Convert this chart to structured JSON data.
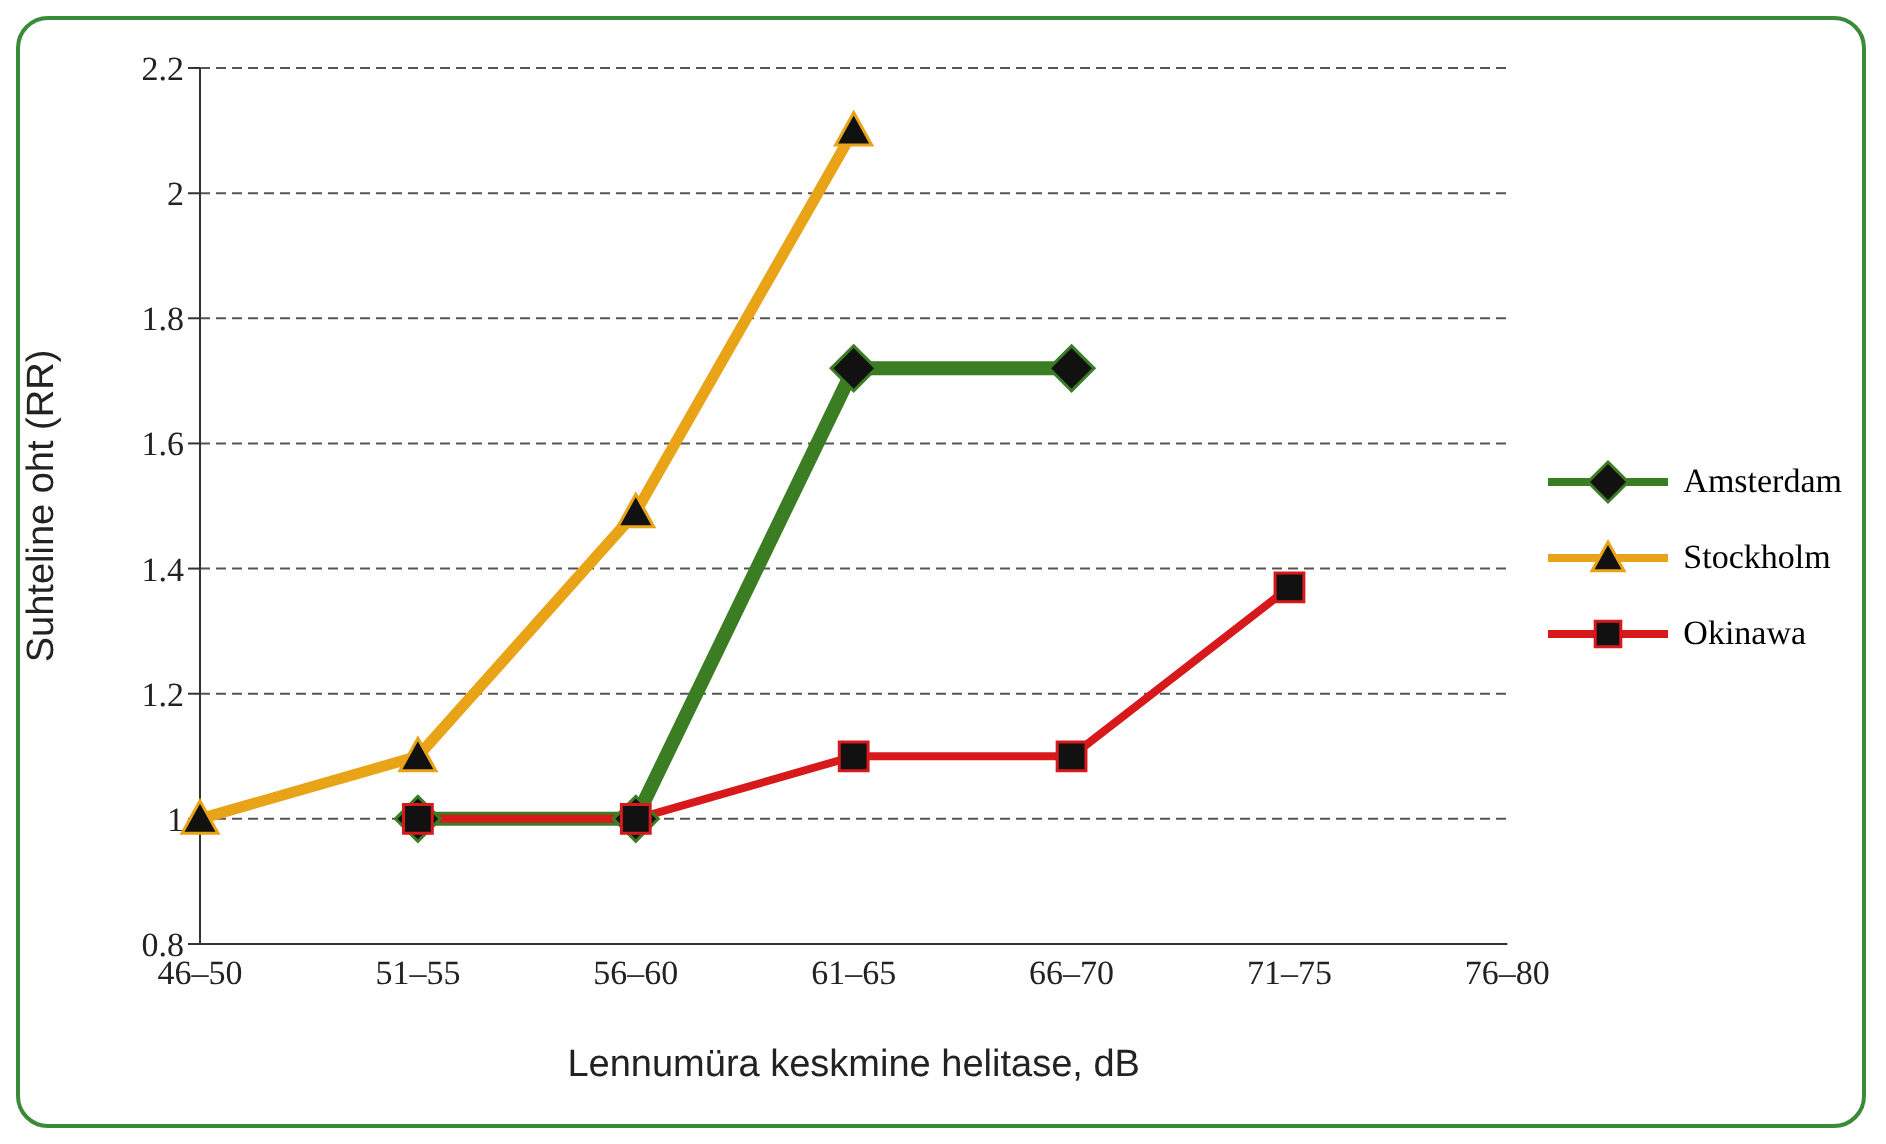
{
  "chart_data": {
    "type": "line",
    "xlabel": "Lennumüra keskmine helitase, dB",
    "ylabel": "Suhteline oht (RR)",
    "categories": [
      "46–50",
      "51–55",
      "56–60",
      "61–65",
      "66–70",
      "71–75",
      "76–80"
    ],
    "series": [
      {
        "name": "Amsterdam",
        "color": "#3a7d22",
        "marker": "diamond",
        "values": [
          null,
          1.0,
          1.0,
          1.72,
          1.72,
          null,
          null
        ]
      },
      {
        "name": "Stockholm",
        "color": "#e8a317",
        "marker": "triangle",
        "values": [
          1.0,
          1.1,
          1.49,
          2.1,
          null,
          null,
          null
        ]
      },
      {
        "name": "Okinawa",
        "color": "#d7191c",
        "marker": "square",
        "values": [
          null,
          1.0,
          1.0,
          1.1,
          1.1,
          1.37,
          null
        ]
      }
    ],
    "ylim": [
      0.8,
      2.2
    ],
    "yticks": [
      0.8,
      1,
      1.2,
      1.4,
      1.6,
      1.8,
      2,
      2.2
    ],
    "grid": "y",
    "legend": "right",
    "line_style": "solid"
  }
}
